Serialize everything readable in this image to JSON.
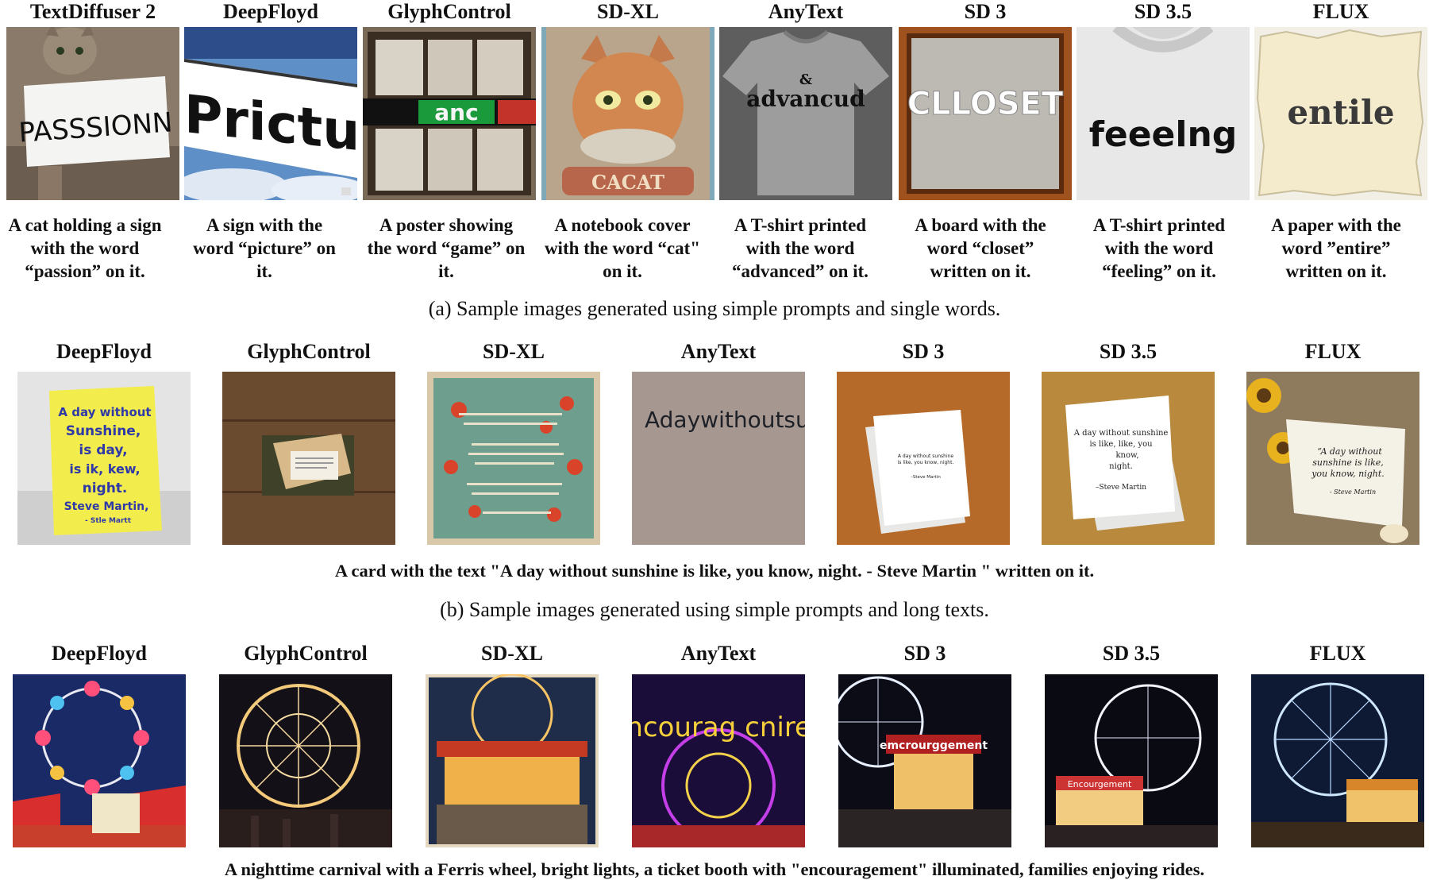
{
  "section_a": {
    "models": [
      "TextDiffuser 2",
      "DeepFloyd",
      "GlyphControl",
      "SD-XL",
      "AnyText",
      "SD 3",
      "SD 3.5",
      "FLUX"
    ],
    "image_text": [
      "PASSSIONN",
      "Prictu",
      "anc",
      "CACAT",
      "advancud",
      "CLLOSET",
      "feeelng",
      "entile"
    ],
    "prompts": [
      "A cat holding a sign with the word “passion” on it.",
      "A sign with the word “picture” on it.",
      "A poster showing the word “game” on it.",
      "A notebook cover with the word “cat\" on it.",
      "A T-shirt printed with the word “advanced” on it.",
      "A board with the word “closet” written on it.",
      "A T-shirt printed with the word “feeling” on it.",
      "A paper with the word ”entire” written on it."
    ],
    "caption": "(a) Sample images generated using simple prompts and single words."
  },
  "section_b": {
    "models": [
      "DeepFloyd",
      "GlyphControl",
      "SD-XL",
      "AnyText",
      "SD 3",
      "SD 3.5",
      "FLUX"
    ],
    "card_text": {
      "deepfloyd": [
        "A day without",
        "Sunshine,",
        "is day,",
        "is ik, kew,",
        "night.",
        "Steve Martin,",
        "- Stle Martt"
      ],
      "anytext": "Adaywithoutsunshi",
      "sd3": [
        "A day without sunshine",
        "is like, you know, night.",
        "–Steve Martin"
      ],
      "sd35": [
        "A day without sunshine",
        "is like, like, you",
        "know,",
        "night.",
        "–Steve Martin"
      ],
      "flux": [
        "“A day without",
        "sunshine is like,",
        "you know, night.",
        "- Steve Martin"
      ]
    },
    "prompt": "A card with the text \"A day without sunshine is like, you know, night. - Steve Martin \" written on it.",
    "caption": "(b) Sample images generated using simple prompts and long texts."
  },
  "section_c": {
    "models": [
      "DeepFloyd",
      "GlyphControl",
      "SD-XL",
      "AnyText",
      "SD 3",
      "SD 3.5",
      "FLUX"
    ],
    "signs": {
      "anytext": "Cencourag cnirenit",
      "sd3": "emcrourggement",
      "sd35": "Encourgement"
    },
    "prompt": "A nighttime carnival with a Ferris wheel, bright lights, a ticket booth with \"encouragement\" illuminated, families enjoying rides."
  }
}
